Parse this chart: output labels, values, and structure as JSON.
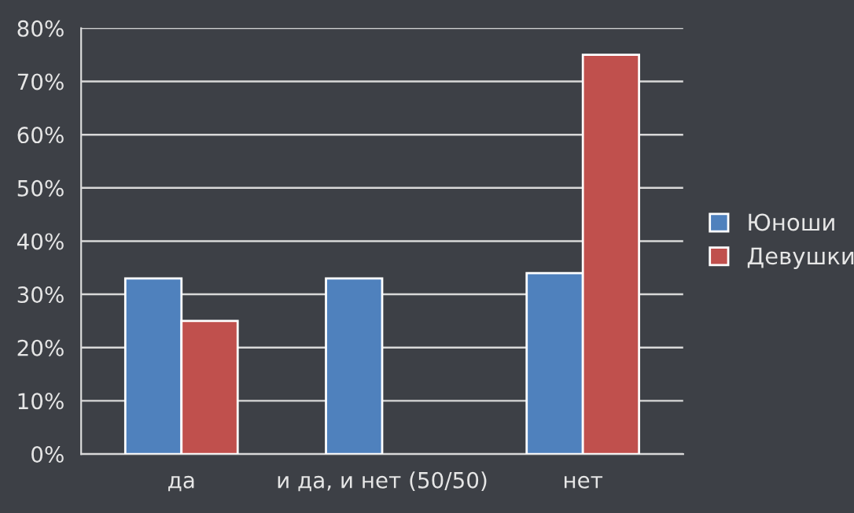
{
  "chart_data": {
    "type": "bar",
    "categories": [
      "да",
      "и да, и нет (50/50)",
      "нет"
    ],
    "series": [
      {
        "name": "Юноши",
        "color": "#4f81bd",
        "values": [
          33,
          33,
          34
        ]
      },
      {
        "name": "Девушки",
        "color": "#c0504d",
        "values": [
          25,
          null,
          75
        ]
      }
    ],
    "ylim": [
      0,
      80
    ],
    "yticks": [
      {
        "value": 0,
        "label": "0%"
      },
      {
        "value": 10,
        "label": "10%"
      },
      {
        "value": 20,
        "label": "20%"
      },
      {
        "value": 30,
        "label": "30%"
      },
      {
        "value": 40,
        "label": "40%"
      },
      {
        "value": 50,
        "label": "50%"
      },
      {
        "value": 60,
        "label": "60%"
      },
      {
        "value": 70,
        "label": "70%"
      },
      {
        "value": 80,
        "label": "80%"
      }
    ],
    "grid": "y",
    "legend": "right"
  }
}
